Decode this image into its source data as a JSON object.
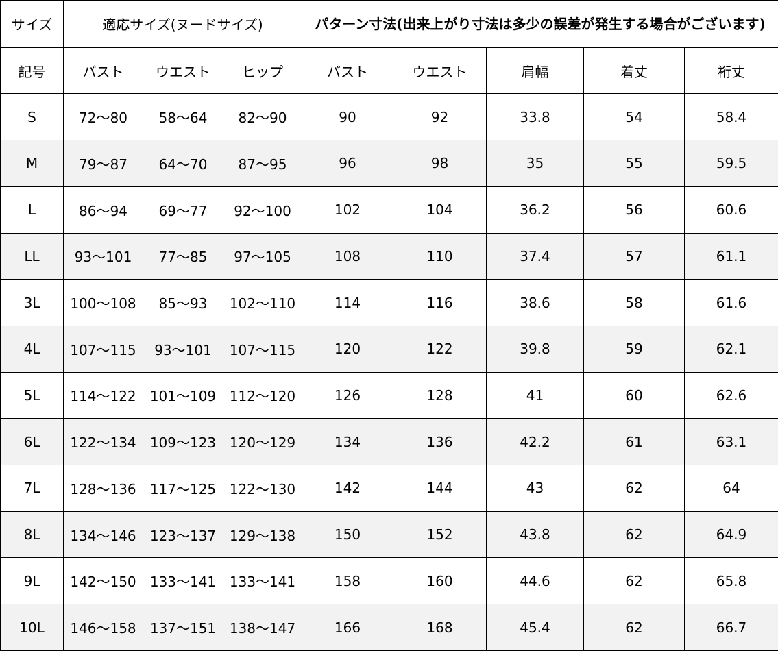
{
  "header": {
    "size": "サイズ",
    "fit_size": "適応サイズ(ヌードサイズ)",
    "pattern_size": "パターン寸法(出来上がり寸法は多少の誤差が発生する場合がございます)",
    "columns": [
      "記号",
      "バスト",
      "ウエスト",
      "ヒップ",
      "バスト",
      "ウエスト",
      "肩幅",
      "着丈",
      "裄丈"
    ]
  },
  "row_colors": {
    "odd": "#ffffff",
    "even": "#f2f2f2"
  },
  "rows": [
    [
      "S",
      "72～80",
      "58～64",
      "82～90",
      "90",
      "92",
      "33.8",
      "54",
      "58.4"
    ],
    [
      "M",
      "79～87",
      "64～70",
      "87～95",
      "96",
      "98",
      "35",
      "55",
      "59.5"
    ],
    [
      "L",
      "86～94",
      "69～77",
      "92～100",
      "102",
      "104",
      "36.2",
      "56",
      "60.6"
    ],
    [
      "LL",
      "93～101",
      "77～85",
      "97～105",
      "108",
      "110",
      "37.4",
      "57",
      "61.1"
    ],
    [
      "3L",
      "100～108",
      "85～93",
      "102～110",
      "114",
      "116",
      "38.6",
      "58",
      "61.6"
    ],
    [
      "4L",
      "107～115",
      "93～101",
      "107～115",
      "120",
      "122",
      "39.8",
      "59",
      "62.1"
    ],
    [
      "5L",
      "114～122",
      "101～109",
      "112～120",
      "126",
      "128",
      "41",
      "60",
      "62.6"
    ],
    [
      "6L",
      "122～134",
      "109～123",
      "120～129",
      "134",
      "136",
      "42.2",
      "61",
      "63.1"
    ],
    [
      "7L",
      "128～136",
      "117～125",
      "122～130",
      "142",
      "144",
      "43",
      "62",
      "64"
    ],
    [
      "8L",
      "134～146",
      "123～137",
      "129～138",
      "150",
      "152",
      "43.8",
      "62",
      "64.9"
    ],
    [
      "9L",
      "142～150",
      "133～141",
      "133～141",
      "158",
      "160",
      "44.6",
      "62",
      "65.8"
    ],
    [
      "10L",
      "146～158",
      "137～151",
      "138～147",
      "166",
      "168",
      "45.4",
      "62",
      "66.7"
    ]
  ]
}
